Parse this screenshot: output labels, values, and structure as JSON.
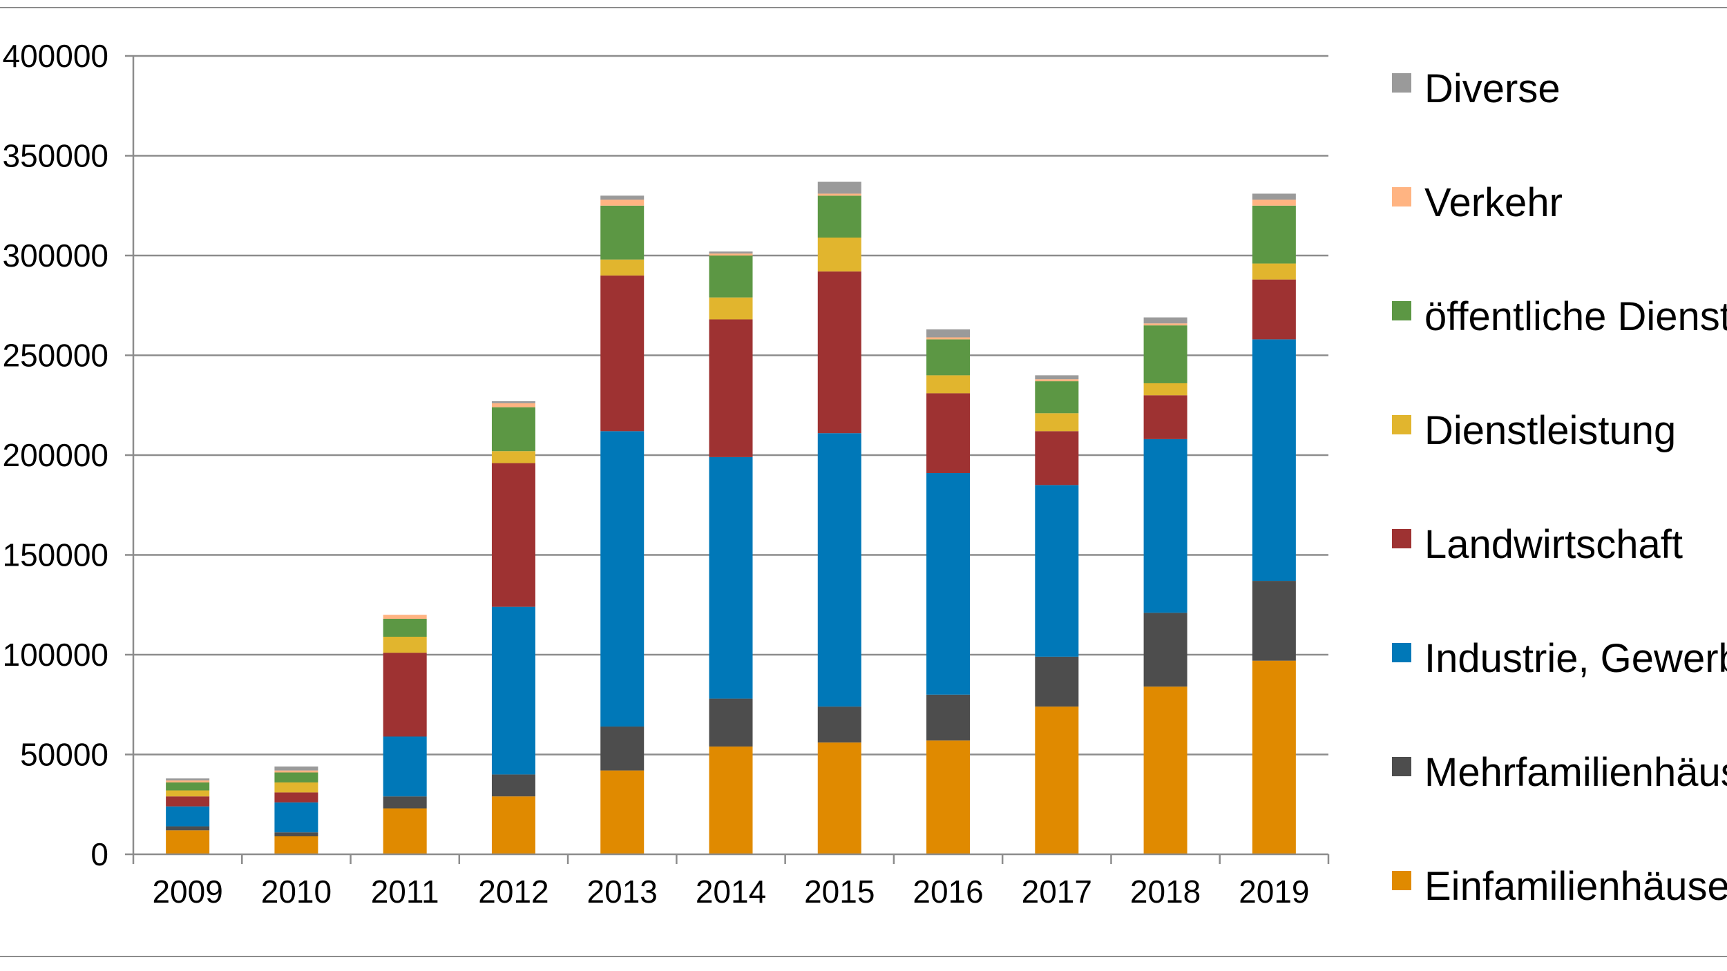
{
  "chart_data": {
    "type": "bar",
    "stacked": true,
    "title": "",
    "xlabel": "",
    "ylabel": "",
    "ylim": [
      0,
      400000
    ],
    "yticks": [
      "0",
      "50000",
      "100000",
      "150000",
      "200000",
      "250000",
      "300000",
      "350000",
      "400000"
    ],
    "grid": true,
    "legend_position": "right",
    "categories": [
      "2009",
      "2010",
      "2011",
      "2012",
      "2013",
      "2014",
      "2015",
      "2016",
      "2017",
      "2018",
      "2019"
    ],
    "series": [
      {
        "name": "Einfamilienhäuser",
        "color": "#E08A00",
        "values": [
          12000,
          9000,
          23000,
          29000,
          42000,
          54000,
          56000,
          57000,
          74000,
          84000,
          97000
        ]
      },
      {
        "name": "Mehrfamilienhäuser",
        "color": "#4D4D4D",
        "values": [
          2000,
          2000,
          6000,
          11000,
          22000,
          24000,
          18000,
          23000,
          25000,
          37000,
          40000
        ]
      },
      {
        "name": "Industrie, Gewerbe",
        "color": "#0078B8",
        "values": [
          10000,
          15000,
          30000,
          84000,
          148000,
          121000,
          137000,
          111000,
          86000,
          87000,
          121000
        ]
      },
      {
        "name": "Landwirtschaft",
        "color": "#9E3232",
        "values": [
          5000,
          5000,
          42000,
          72000,
          78000,
          69000,
          81000,
          40000,
          27000,
          22000,
          30000
        ]
      },
      {
        "name": "Dienstleistung",
        "color": "#E1B52E",
        "values": [
          3000,
          5000,
          8000,
          6000,
          8000,
          11000,
          17000,
          9000,
          9000,
          6000,
          8000
        ]
      },
      {
        "name": "öffentliche Dienste",
        "color": "#5C9744",
        "values": [
          4000,
          5000,
          9000,
          22000,
          27000,
          21000,
          21000,
          18000,
          16000,
          29000,
          29000
        ]
      },
      {
        "name": "Verkehr",
        "color": "#FFB482",
        "values": [
          1000,
          1000,
          2000,
          2000,
          3000,
          1000,
          1000,
          1000,
          1000,
          1000,
          3000
        ]
      },
      {
        "name": "Diverse",
        "color": "#9A9A9A",
        "values": [
          1000,
          2000,
          0,
          1000,
          2000,
          1000,
          6000,
          4000,
          2000,
          3000,
          3000
        ]
      }
    ]
  }
}
